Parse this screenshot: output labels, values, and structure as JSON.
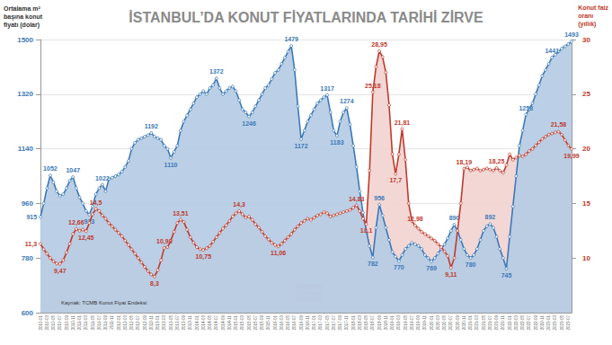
{
  "chart_data": {
    "type": "line",
    "title": "İSTANBUL’DA KONUT FİYATLARINDA TARİHİ ZİRVE",
    "ylabel": "Ortalama m²\nbaşına konut\nfiyatı (dolar)",
    "y2label": "Konut faiz\noranı\n(yıllık)",
    "annotations": [
      "Kaynak: TCMB Konut Fiyat Endeksi",
      "HABER\nTÜRK"
    ],
    "categories": [
      "2010-01",
      null,
      "2010-03",
      null,
      "2010-05",
      null,
      "2010-07",
      null,
      "2010-09",
      null,
      "2010-11",
      null,
      "2011-01",
      null,
      "2011-03",
      null,
      "2011-05",
      null,
      "2011-07",
      null,
      "2011-09",
      null,
      "2011-11",
      null,
      "2012-01",
      null,
      "2012-03",
      null,
      "2012-05",
      null,
      "2012-07",
      null,
      "2012-09",
      null,
      "2012-11",
      null,
      "2013-01",
      null,
      "2013-03",
      null,
      "2013-05",
      null,
      "2013-07",
      null,
      "2013-09",
      null,
      "2013-11",
      null,
      "2014-01",
      null,
      "2014-03",
      null,
      "2014-05",
      null,
      "2014-07",
      null,
      "2014-09",
      null,
      "2014-11",
      null,
      "2015-01",
      null,
      "2015-03",
      null,
      "2015-05",
      null,
      "2015-07",
      null,
      "2015-09",
      null,
      "2015-11",
      null,
      "2016-01",
      null,
      "2016-03",
      null,
      "2016-05",
      null,
      "2016-07",
      null,
      "2016-09",
      null,
      "2016-11",
      null,
      "2017-01",
      null,
      "2017-03",
      null,
      "2017-05",
      null,
      "2017-07",
      null,
      "2017-09",
      null,
      "2017-11",
      null,
      "2018-01",
      null,
      "2018-03",
      null,
      "2018-05",
      null,
      "2018-07",
      null,
      "2018-09",
      null,
      "2018-11",
      null,
      "2019-01",
      null,
      "2019-03",
      null,
      "2019-05",
      null,
      "2019-07",
      null,
      "2019-09",
      null,
      "2019-11",
      null,
      "2020-01",
      null,
      "2020-03",
      null,
      "2020-05",
      null,
      "2020-07",
      null,
      "2020-09",
      null,
      "2020-11",
      null,
      "2021-01",
      null,
      "2021-03",
      null,
      "2021-05",
      null,
      "2021-07",
      null,
      "2021-09",
      null,
      "2021-11",
      null,
      "2022-01",
      null,
      "2022-03",
      null,
      "2022-05",
      null,
      "2022-07",
      null,
      "2022-09",
      null,
      "2022-11",
      null,
      "2023-01",
      null,
      "2023-03",
      null,
      "2023-05",
      null,
      "2023-07",
      null
    ],
    "series": [
      {
        "type": "area",
        "color": "#3b78b8",
        "marker": "circle",
        "values": [
          915,
          960,
          1010,
          1052,
          1030,
          1000,
          985,
          990,
          1010,
          1035,
          1047,
          1010,
          980,
          960,
          935,
          923,
          950,
          990,
          1010,
          1022,
          1000,
          1040,
          1045,
          1050,
          1055,
          1065,
          1080,
          1100,
          1140,
          1160,
          1170,
          1175,
          1180,
          1185,
          1192,
          1180,
          1175,
          1170,
          1150,
          1140,
          1110,
          1130,
          1150,
          1200,
          1230,
          1250,
          1270,
          1290,
          1310,
          1320,
          1330,
          1320,
          1340,
          1350,
          1372,
          1340,
          1320,
          1330,
          1340,
          1345,
          1330,
          1300,
          1270,
          1260,
          1246,
          1260,
          1280,
          1300,
          1320,
          1340,
          1350,
          1370,
          1390,
          1400,
          1420,
          1440,
          1460,
          1479,
          1400,
          1280,
          1172,
          1200,
          1230,
          1250,
          1270,
          1290,
          1300,
          1310,
          1317,
          1260,
          1200,
          1183,
          1230,
          1260,
          1274,
          1220,
          1150,
          1080,
          1000,
          930,
          870,
          820,
          782,
          880,
          956,
          920,
          880,
          840,
          800,
          785,
          770,
          790,
          810,
          820,
          830,
          825,
          820,
          810,
          790,
          780,
          769,
          780,
          795,
          810,
          825,
          845,
          870,
          890,
          870,
          840,
          810,
          790,
          780,
          790,
          810,
          840,
          870,
          885,
          892,
          880,
          850,
          810,
          780,
          745,
          850,
          950,
          1050,
          1150,
          1200,
          1253,
          1270,
          1290,
          1320,
          1350,
          1380,
          1400,
          1420,
          1441,
          1450,
          1460,
          1470,
          1478,
          1485,
          1493
        ],
        "value_labels": [
          "915",
          null,
          null,
          "1052",
          null,
          null,
          null,
          null,
          null,
          null,
          "1047",
          null,
          null,
          null,
          null,
          "923",
          null,
          null,
          null,
          "1022",
          null,
          null,
          null,
          null,
          null,
          null,
          null,
          null,
          null,
          null,
          null,
          null,
          null,
          null,
          "1192",
          null,
          null,
          null,
          null,
          null,
          "1110",
          null,
          null,
          null,
          null,
          null,
          null,
          null,
          null,
          null,
          null,
          null,
          null,
          null,
          "1372",
          null,
          null,
          null,
          null,
          null,
          null,
          null,
          null,
          null,
          "1246",
          null,
          null,
          null,
          null,
          null,
          null,
          null,
          null,
          null,
          null,
          null,
          null,
          "1479",
          null,
          null,
          "1172",
          null,
          null,
          null,
          null,
          null,
          null,
          null,
          "1317",
          null,
          null,
          "1183",
          null,
          null,
          "1274",
          null,
          null,
          null,
          null,
          null,
          null,
          null,
          "782",
          null,
          "956",
          null,
          null,
          null,
          null,
          null,
          "770",
          null,
          null,
          null,
          null,
          null,
          null,
          null,
          null,
          null,
          "769",
          null,
          null,
          null,
          null,
          null,
          null,
          "890",
          null,
          null,
          null,
          null,
          "780",
          null,
          null,
          null,
          null,
          null,
          "892",
          null,
          null,
          null,
          null,
          "745",
          null,
          null,
          null,
          null,
          null,
          "1253",
          null,
          null,
          null,
          null,
          null,
          null,
          null,
          "1441",
          null,
          null,
          null,
          null,
          null,
          "1493"
        ]
      },
      {
        "type": "area",
        "color": "#c0392b",
        "marker": "circle",
        "axis": "y2",
        "values": [
          11.3,
          10.8,
          10.4,
          10.0,
          9.7,
          9.5,
          9.47,
          9.8,
          10.5,
          11.3,
          12.2,
          12.66,
          12.5,
          12.6,
          12.45,
          13.2,
          14.0,
          14.5,
          14.3,
          13.9,
          13.6,
          13.2,
          12.9,
          12.6,
          12.3,
          12.0,
          11.6,
          11.2,
          10.8,
          10.4,
          10.0,
          9.6,
          9.2,
          8.8,
          8.5,
          8.3,
          8.9,
          9.8,
          10.93,
          11.0,
          11.6,
          12.4,
          13.2,
          13.51,
          13.3,
          12.6,
          11.9,
          11.4,
          11.0,
          10.8,
          10.75,
          10.9,
          11.1,
          11.5,
          11.9,
          12.3,
          12.7,
          13.0,
          13.4,
          13.8,
          14.1,
          14.3,
          14.0,
          13.7,
          13.8,
          13.5,
          13.1,
          12.8,
          12.4,
          12.0,
          11.7,
          11.4,
          11.2,
          11.06,
          11.3,
          11.6,
          11.9,
          12.2,
          12.6,
          12.9,
          13.2,
          13.4,
          13.6,
          13.5,
          13.7,
          13.9,
          14.0,
          14.2,
          14.1,
          13.8,
          13.9,
          14.0,
          14.1,
          14.2,
          14.3,
          14.4,
          14.6,
          14.83,
          14.3,
          13.6,
          13.1,
          18.0,
          25.18,
          27.5,
          28.95,
          28.4,
          27.0,
          24.0,
          19.5,
          17.7,
          19.5,
          21.81,
          19.0,
          15.0,
          13.4,
          12.98,
          12.7,
          12.4,
          12.2,
          12.0,
          11.8,
          11.6,
          11.3,
          11.0,
          10.6,
          10.2,
          9.11,
          10.0,
          12.5,
          15.0,
          18.19,
          18.3,
          18.0,
          18.1,
          18.2,
          18.0,
          18.1,
          18.2,
          18.1,
          18.0,
          18.25,
          18.0,
          17.8,
          18.5,
          19.5,
          19.0,
          19.2,
          19.4,
          19.3,
          19.5,
          19.8,
          20.0,
          20.3,
          20.6,
          20.9,
          21.1,
          21.3,
          21.4,
          21.5,
          21.58,
          21.3,
          20.8,
          20.3,
          19.99
        ],
        "value_labels": [
          "11,3",
          null,
          null,
          null,
          null,
          null,
          "9,47",
          null,
          null,
          null,
          null,
          "12,66",
          null,
          null,
          "12,45",
          null,
          null,
          "14,5",
          null,
          null,
          null,
          null,
          null,
          null,
          null,
          null,
          null,
          null,
          null,
          null,
          null,
          null,
          null,
          null,
          null,
          "8,3",
          null,
          null,
          "10,93",
          null,
          null,
          null,
          null,
          "13,51",
          null,
          null,
          null,
          null,
          null,
          null,
          "10,75",
          null,
          null,
          null,
          null,
          null,
          null,
          null,
          null,
          null,
          null,
          "14,3",
          null,
          null,
          null,
          null,
          null,
          null,
          null,
          null,
          null,
          null,
          null,
          "11,06",
          null,
          null,
          null,
          null,
          null,
          null,
          null,
          null,
          null,
          null,
          null,
          null,
          null,
          null,
          null,
          null,
          null,
          null,
          null,
          null,
          null,
          null,
          null,
          "14,83",
          null,
          null,
          "13,1",
          null,
          "25,18",
          null,
          "28,95",
          null,
          null,
          null,
          null,
          "17,7",
          null,
          "21,81",
          null,
          null,
          null,
          "12,98",
          null,
          null,
          null,
          null,
          null,
          null,
          null,
          null,
          null,
          null,
          "9,11",
          null,
          null,
          null,
          "18,19",
          null,
          null,
          null,
          null,
          null,
          null,
          null,
          null,
          null,
          "18,25",
          null,
          null,
          null,
          null,
          null,
          null,
          null,
          null,
          null,
          null,
          null,
          null,
          null,
          null,
          null,
          null,
          null,
          null,
          "21,58",
          null,
          null,
          null,
          "19,99"
        ]
      }
    ],
    "ylim": [
      600,
      1500
    ],
    "yticks": [
      600,
      780,
      960,
      1140,
      1320,
      1500
    ],
    "y2lim": [
      5,
      30
    ],
    "y2ticks": [
      10,
      15,
      20,
      25,
      30
    ],
    "grid": true,
    "data_labels": true
  }
}
